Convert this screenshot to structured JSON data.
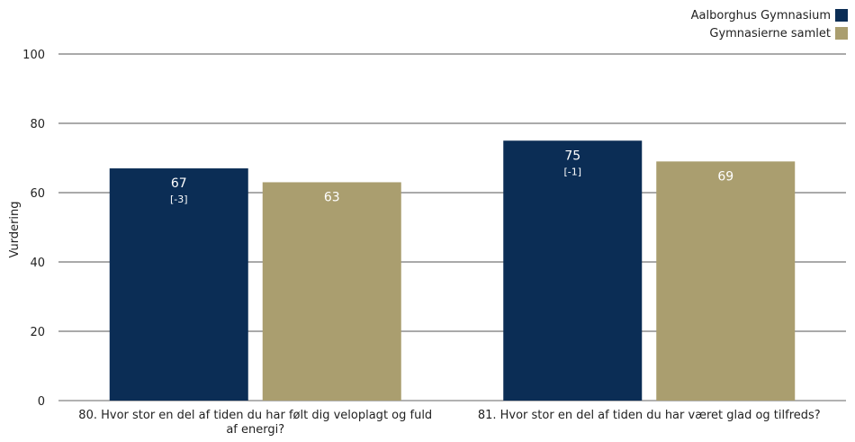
{
  "chart_data": {
    "type": "bar",
    "categories": [
      "80. Hvor stor en del af tiden du har følt dig veloplagt og fuld af energi?",
      "81. Hvor stor en del af tiden du har været glad og tilfreds?"
    ],
    "series": [
      {
        "name": "Aalborghus Gymnasium",
        "values": [
          67,
          75
        ],
        "labels": [
          "67",
          "75"
        ],
        "sublabels": [
          "[-3]",
          "[-1]"
        ],
        "color": "#0b2d55"
      },
      {
        "name": "Gymnasierne samlet",
        "values": [
          63,
          69
        ],
        "labels": [
          "63",
          "69"
        ],
        "sublabels": [
          "",
          ""
        ],
        "color": "#aa9e6f"
      }
    ],
    "title": "",
    "xlabel": "",
    "ylabel": "Vurdering",
    "ylim": [
      0,
      100
    ],
    "yticks": [
      "0",
      "20",
      "40",
      "60",
      "80",
      "100"
    ],
    "grid": true,
    "legend_position": "top-right"
  }
}
